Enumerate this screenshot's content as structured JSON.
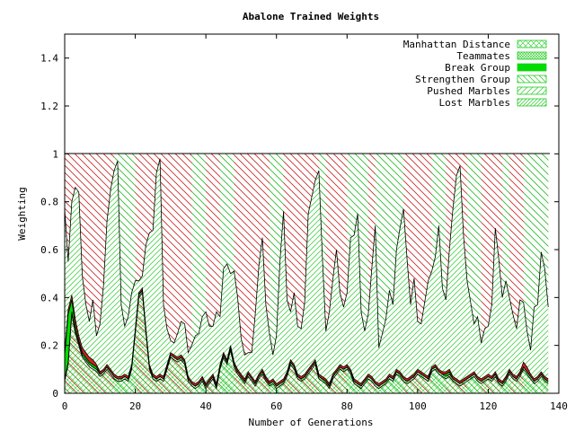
{
  "chart_data": {
    "type": "area",
    "title": "Abalone Trained Weights",
    "xlabel": "Number of Generations",
    "ylabel": "Weighting",
    "xlim": [
      0,
      140
    ],
    "ylim": [
      0,
      1.5
    ],
    "x_ticks": [
      "0",
      "20",
      "40",
      "60",
      "80",
      "100",
      "120",
      "140"
    ],
    "y_ticks": [
      "0",
      "0.2",
      "0.4",
      "0.6",
      "0.8",
      "1",
      "1.2",
      "1.4"
    ],
    "legend_position": "top-right",
    "stacked": true,
    "stack_total": 1,
    "x": [
      0,
      1,
      2,
      3,
      4,
      5,
      6,
      7,
      8,
      9,
      10,
      11,
      12,
      13,
      14,
      15,
      16,
      17,
      18,
      19,
      20,
      21,
      22,
      23,
      24,
      25,
      26,
      27,
      28,
      29,
      30,
      31,
      32,
      33,
      34,
      35,
      36,
      37,
      38,
      39,
      40,
      41,
      42,
      43,
      44,
      45,
      46,
      47,
      48,
      49,
      50,
      51,
      52,
      53,
      54,
      55,
      56,
      57,
      58,
      59,
      60,
      61,
      62,
      63,
      64,
      65,
      66,
      67,
      68,
      69,
      70,
      71,
      72,
      73,
      74,
      75,
      76,
      77,
      78,
      79,
      80,
      81,
      82,
      83,
      84,
      85,
      86,
      87,
      88,
      89,
      90,
      91,
      92,
      93,
      94,
      95,
      96,
      97,
      98,
      99,
      100,
      101,
      102,
      103,
      104,
      105,
      106,
      107,
      108,
      109,
      110,
      111,
      112,
      113,
      114,
      115,
      116,
      117,
      118,
      119,
      120,
      121,
      122,
      123,
      124,
      125,
      126,
      127,
      128,
      129,
      130,
      131,
      132,
      133,
      134,
      135,
      136,
      137
    ],
    "series": [
      {
        "name": "Manhattan Distance",
        "color": "#00cc00",
        "values": [
          0.05,
          0.12,
          0.33,
          0.25,
          0.2,
          0.15,
          0.13,
          0.11,
          0.1,
          0.09,
          0.07,
          0.08,
          0.1,
          0.08,
          0.06,
          0.05,
          0.05,
          0.06,
          0.05,
          0.1,
          0.25,
          0.4,
          0.42,
          0.25,
          0.1,
          0.06,
          0.05,
          0.06,
          0.05,
          0.1,
          0.15,
          0.14,
          0.13,
          0.14,
          0.12,
          0.05,
          0.03,
          0.02,
          0.03,
          0.05,
          0.02,
          0.04,
          0.06,
          0.02,
          0.1,
          0.15,
          0.12,
          0.18,
          0.11,
          0.08,
          0.06,
          0.04,
          0.07,
          0.05,
          0.03,
          0.06,
          0.08,
          0.05,
          0.03,
          0.04,
          0.02,
          0.03,
          0.04,
          0.07,
          0.12,
          0.1,
          0.06,
          0.05,
          0.06,
          0.08,
          0.1,
          0.12,
          0.06,
          0.05,
          0.04,
          0.02,
          0.06,
          0.08,
          0.1,
          0.09,
          0.1,
          0.08,
          0.04,
          0.03,
          0.02,
          0.04,
          0.06,
          0.05,
          0.03,
          0.02,
          0.03,
          0.04,
          0.06,
          0.05,
          0.08,
          0.07,
          0.05,
          0.04,
          0.05,
          0.06,
          0.08,
          0.07,
          0.06,
          0.05,
          0.09,
          0.1,
          0.08,
          0.07,
          0.06,
          0.07,
          0.05,
          0.04,
          0.03,
          0.04,
          0.05,
          0.06,
          0.07,
          0.05,
          0.04,
          0.05,
          0.06,
          0.05,
          0.07,
          0.04,
          0.03,
          0.05,
          0.08,
          0.06,
          0.05,
          0.07,
          0.1,
          0.08,
          0.06,
          0.04,
          0.05,
          0.07,
          0.05,
          0.04
        ],
        "pattern": "cross"
      },
      {
        "name": "Teammates",
        "color": "#00cc00",
        "values": [
          0.01,
          0.01,
          0.01,
          0.01,
          0.01,
          0.01,
          0.01,
          0.01,
          0.01,
          0.01,
          0.01,
          0.01,
          0.01,
          0.01,
          0.01,
          0.01,
          0.01,
          0.01,
          0.01,
          0.01,
          0.01,
          0.01,
          0.01,
          0.01,
          0.01,
          0.01,
          0.01,
          0.01,
          0.01,
          0.01,
          0.01,
          0.01,
          0.01,
          0.01,
          0.01,
          0.01,
          0.01,
          0.01,
          0.01,
          0.01,
          0.01,
          0.01,
          0.01,
          0.01,
          0.01,
          0.01,
          0.01,
          0.01,
          0.01,
          0.01,
          0.01,
          0.01,
          0.01,
          0.01,
          0.01,
          0.01,
          0.01,
          0.01,
          0.01,
          0.01,
          0.01,
          0.01,
          0.01,
          0.01,
          0.01,
          0.01,
          0.01,
          0.01,
          0.01,
          0.01,
          0.01,
          0.01,
          0.01,
          0.01,
          0.01,
          0.01,
          0.01,
          0.01,
          0.01,
          0.01,
          0.01,
          0.01,
          0.01,
          0.01,
          0.01,
          0.01,
          0.01,
          0.01,
          0.01,
          0.01,
          0.01,
          0.01,
          0.01,
          0.01,
          0.01,
          0.01,
          0.01,
          0.01,
          0.01,
          0.01,
          0.01,
          0.01,
          0.01,
          0.01,
          0.01,
          0.01,
          0.01,
          0.01,
          0.01,
          0.01,
          0.01,
          0.01,
          0.01,
          0.01,
          0.01,
          0.01,
          0.01,
          0.01,
          0.01,
          0.01,
          0.01,
          0.01,
          0.01,
          0.01,
          0.01,
          0.01,
          0.01,
          0.01,
          0.01,
          0.01,
          0.01,
          0.01,
          0.01,
          0.01,
          0.01,
          0.01,
          0.01,
          0.01
        ],
        "pattern": "dense-cross"
      },
      {
        "name": "Break Group",
        "color": "#00cc00",
        "values": [
          0.1,
          0.2,
          0.05,
          0.02,
          0.01,
          0.01,
          0.01,
          0.01,
          0.01,
          0.01,
          0,
          0,
          0,
          0,
          0,
          0,
          0,
          0,
          0,
          0,
          0,
          0,
          0,
          0,
          0,
          0,
          0,
          0,
          0,
          0,
          0,
          0,
          0,
          0,
          0,
          0,
          0,
          0,
          0,
          0,
          0,
          0,
          0,
          0,
          0,
          0,
          0,
          0,
          0,
          0,
          0,
          0,
          0,
          0,
          0,
          0,
          0,
          0,
          0,
          0,
          0,
          0,
          0,
          0,
          0,
          0,
          0,
          0,
          0,
          0,
          0,
          0,
          0,
          0,
          0,
          0,
          0,
          0,
          0,
          0,
          0,
          0,
          0,
          0,
          0,
          0,
          0,
          0,
          0,
          0,
          0,
          0,
          0,
          0,
          0,
          0,
          0,
          0,
          0,
          0,
          0,
          0,
          0,
          0,
          0,
          0,
          0,
          0,
          0.01,
          0.01,
          0,
          0,
          0,
          0,
          0,
          0,
          0,
          0,
          0,
          0,
          0,
          0,
          0,
          0,
          0,
          0,
          0,
          0,
          0,
          0,
          0,
          0,
          0,
          0,
          0,
          0,
          0,
          0
        ],
        "pattern": "solid"
      },
      {
        "name": "Strengthen Group",
        "color": "#cc0000",
        "values": [
          0.01,
          0.02,
          0.02,
          0.03,
          0.02,
          0.02,
          0.02,
          0.02,
          0.02,
          0.01,
          0.01,
          0.01,
          0.01,
          0.01,
          0.01,
          0.01,
          0.01,
          0.01,
          0.01,
          0.01,
          0.01,
          0.01,
          0.01,
          0.01,
          0.01,
          0.01,
          0.01,
          0.01,
          0.01,
          0.01,
          0.01,
          0.01,
          0.01,
          0.01,
          0.01,
          0.01,
          0.01,
          0.01,
          0.01,
          0.01,
          0.01,
          0.01,
          0.01,
          0.01,
          0.01,
          0.01,
          0.01,
          0.01,
          0.01,
          0.01,
          0.01,
          0.01,
          0.01,
          0.01,
          0.01,
          0.01,
          0.01,
          0.01,
          0.01,
          0.01,
          0.01,
          0.01,
          0.01,
          0.01,
          0.01,
          0.01,
          0.01,
          0.01,
          0.01,
          0.01,
          0.01,
          0.01,
          0.01,
          0.01,
          0.01,
          0.01,
          0.01,
          0.01,
          0.01,
          0.01,
          0.01,
          0.01,
          0.01,
          0.01,
          0.01,
          0.01,
          0.01,
          0.01,
          0.01,
          0.01,
          0.01,
          0.01,
          0.01,
          0.01,
          0.01,
          0.01,
          0.01,
          0.01,
          0.01,
          0.01,
          0.01,
          0.01,
          0.01,
          0.01,
          0.01,
          0.01,
          0.01,
          0.01,
          0.01,
          0.01,
          0.01,
          0.01,
          0.01,
          0.01,
          0.01,
          0.01,
          0.01,
          0.01,
          0.01,
          0.01,
          0.01,
          0.01,
          0.01,
          0.01,
          0.01,
          0.01,
          0.01,
          0.01,
          0.01,
          0.01,
          0.02,
          0.02,
          0.01,
          0.01,
          0.01,
          0.01,
          0.01,
          0.01
        ],
        "pattern": "diag-back"
      },
      {
        "name": "Pushed Marbles",
        "color": "#00cc00",
        "values": [
          0.6,
          0.2,
          0.39,
          0.55,
          0.6,
          0.3,
          0.2,
          0.15,
          0.25,
          0.12,
          0.2,
          0.35,
          0.6,
          0.75,
          0.85,
          0.9,
          0.3,
          0.2,
          0.25,
          0.3,
          0.2,
          0.05,
          0.05,
          0.35,
          0.55,
          0.6,
          0.85,
          0.9,
          0.3,
          0.15,
          0.05,
          0.05,
          0.1,
          0.14,
          0.15,
          0.1,
          0.15,
          0.2,
          0.2,
          0.25,
          0.3,
          0.22,
          0.2,
          0.3,
          0.2,
          0.35,
          0.4,
          0.3,
          0.38,
          0.3,
          0.15,
          0.1,
          0.08,
          0.1,
          0.28,
          0.45,
          0.55,
          0.3,
          0.2,
          0.1,
          0.2,
          0.5,
          0.7,
          0.3,
          0.2,
          0.3,
          0.2,
          0.2,
          0.3,
          0.65,
          0.7,
          0.75,
          0.85,
          0.5,
          0.2,
          0.3,
          0.4,
          0.5,
          0.3,
          0.25,
          0.3,
          0.55,
          0.6,
          0.7,
          0.3,
          0.2,
          0.25,
          0.45,
          0.65,
          0.15,
          0.2,
          0.25,
          0.35,
          0.3,
          0.5,
          0.6,
          0.7,
          0.5,
          0.3,
          0.4,
          0.2,
          0.2,
          0.3,
          0.4,
          0.4,
          0.45,
          0.6,
          0.35,
          0.3,
          0.5,
          0.7,
          0.85,
          0.9,
          0.6,
          0.4,
          0.3,
          0.2,
          0.25,
          0.15,
          0.2,
          0.2,
          0.3,
          0.6,
          0.5,
          0.35,
          0.4,
          0.3,
          0.25,
          0.2,
          0.3,
          0.25,
          0.15,
          0.1,
          0.3,
          0.3,
          0.5,
          0.45,
          0.3
        ],
        "pattern": "diag-fwd"
      },
      {
        "name": "Lost Marbles",
        "color": "#00cc00",
        "values": [
          0.23,
          0.44,
          0.2,
          0.14,
          0.16,
          0.51,
          0.63,
          0.7,
          0.61,
          0.77,
          0.71,
          0.55,
          0.28,
          0.15,
          0.07,
          0.03,
          0.63,
          0.72,
          0.68,
          0.58,
          0.53,
          0.53,
          0.51,
          0.38,
          0.34,
          0.32,
          0.08,
          0.03,
          0.63,
          0.73,
          0.79,
          0.8,
          0.75,
          0.7,
          0.71,
          0.83,
          0.8,
          0.76,
          0.75,
          0.68,
          0.66,
          0.72,
          0.72,
          0.66,
          0.68,
          0.48,
          0.46,
          0.5,
          0.49,
          0.6,
          0.77,
          0.84,
          0.83,
          0.83,
          0.67,
          0.47,
          0.35,
          0.63,
          0.75,
          0.84,
          0.76,
          0.45,
          0.24,
          0.58,
          0.66,
          0.58,
          0.72,
          0.73,
          0.62,
          0.25,
          0.18,
          0.11,
          0.07,
          0.43,
          0.74,
          0.66,
          0.52,
          0.4,
          0.58,
          0.64,
          0.58,
          0.35,
          0.34,
          0.25,
          0.66,
          0.74,
          0.67,
          0.48,
          0.3,
          0.8,
          0.75,
          0.69,
          0.57,
          0.63,
          0.4,
          0.31,
          0.23,
          0.44,
          0.63,
          0.52,
          0.7,
          0.71,
          0.62,
          0.53,
          0.49,
          0.43,
          0.3,
          0.56,
          0.62,
          0.41,
          0.23,
          0.09,
          0.05,
          0.34,
          0.53,
          0.62,
          0.71,
          0.68,
          0.79,
          0.73,
          0.72,
          0.63,
          0.31,
          0.43,
          0.6,
          0.53,
          0.61,
          0.68,
          0.73,
          0.61,
          0.62,
          0.74,
          0.82,
          0.64,
          0.63,
          0.41,
          0.48,
          0.64
        ]
      }
    ]
  }
}
